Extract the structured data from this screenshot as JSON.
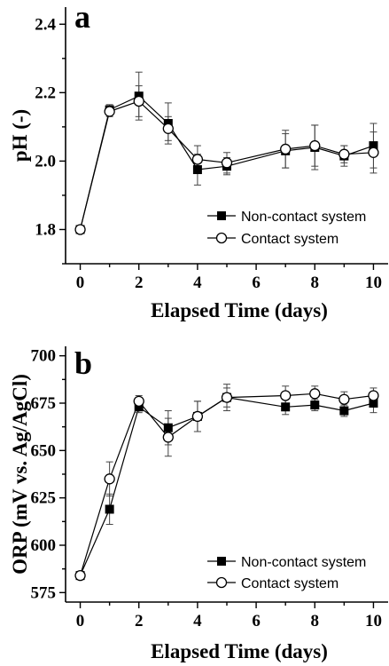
{
  "chart_data": [
    {
      "panel_label": "a",
      "type": "line",
      "xlabel": "Elapsed Time (days)",
      "ylabel": "pH (-)",
      "xlim": [
        -0.5,
        10.5
      ],
      "ylim": [
        1.7,
        2.45
      ],
      "xticks": [
        0,
        2,
        4,
        6,
        8,
        10
      ],
      "yticks": [
        1.8,
        2.0,
        2.2,
        2.4
      ],
      "ytick_labels": [
        "1.8",
        "2.0",
        "2.2",
        "2.4"
      ],
      "grid": false,
      "legend_position": "bottom-right",
      "x": [
        0,
        1,
        2,
        3,
        4,
        5,
        7,
        8,
        9,
        10
      ],
      "series": [
        {
          "name": "Non-contact system",
          "marker": "filled-square",
          "values": [
            1.8,
            2.15,
            2.19,
            2.11,
            1.975,
            1.985,
            2.03,
            2.04,
            2.015,
            2.045
          ],
          "errors": [
            0.005,
            0.015,
            0.07,
            0.06,
            0.045,
            0.025,
            0.05,
            0.065,
            0.03,
            0.065
          ]
        },
        {
          "name": "Contact system",
          "marker": "open-circle",
          "values": [
            1.8,
            2.145,
            2.175,
            2.095,
            2.005,
            1.995,
            2.035,
            2.045,
            2.02,
            2.025
          ],
          "errors": [
            0.005,
            0.015,
            0.045,
            0.035,
            0.04,
            0.03,
            0.055,
            0.06,
            0.025,
            0.06
          ]
        }
      ]
    },
    {
      "panel_label": "b",
      "type": "line",
      "xlabel": "Elapsed Time (days)",
      "ylabel": "ORP (mV vs. Ag/AgCl)",
      "xlim": [
        -0.5,
        10.5
      ],
      "ylim": [
        570,
        705
      ],
      "xticks": [
        0,
        2,
        4,
        6,
        8,
        10
      ],
      "yticks": [
        575,
        600,
        625,
        650,
        675,
        700
      ],
      "ytick_labels": [
        "575",
        "600",
        "625",
        "650",
        "675",
        "700"
      ],
      "grid": false,
      "legend_position": "bottom-right",
      "x": [
        0,
        1,
        2,
        3,
        4,
        5,
        7,
        8,
        9,
        10
      ],
      "series": [
        {
          "name": "Non-contact system",
          "marker": "filled-square",
          "values": [
            584,
            619,
            673,
            662,
            668,
            678,
            673,
            674,
            671,
            675
          ],
          "errors": [
            1,
            8,
            3,
            9,
            8,
            5,
            4,
            3,
            3,
            5
          ]
        },
        {
          "name": "Contact system",
          "marker": "open-circle",
          "values": [
            584,
            635,
            676,
            657,
            668,
            678,
            679,
            680,
            677,
            679
          ],
          "errors": [
            1,
            9,
            3,
            10,
            8,
            7,
            5,
            4,
            4,
            4
          ]
        }
      ]
    }
  ]
}
